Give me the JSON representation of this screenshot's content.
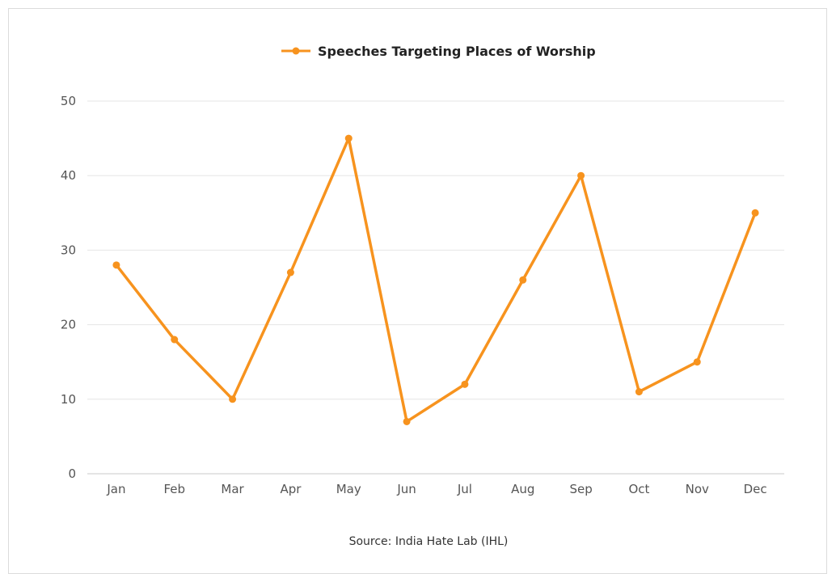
{
  "chart_data": {
    "type": "line",
    "categories": [
      "Jan",
      "Feb",
      "Mar",
      "Apr",
      "May",
      "Jun",
      "Jul",
      "Aug",
      "Sep",
      "Oct",
      "Nov",
      "Dec"
    ],
    "series": [
      {
        "name": "Speeches Targeting Places of Worship",
        "values": [
          28,
          18,
          10,
          27,
          45,
          7,
          12,
          26,
          40,
          11,
          15,
          35
        ],
        "color": "#f7931e"
      }
    ],
    "ylim": [
      0,
      50
    ],
    "yticks": [
      0,
      10,
      20,
      30,
      40,
      50
    ],
    "grid": true,
    "legend_position": "top-center",
    "source": "Source: India Hate Lab (IHL)"
  }
}
